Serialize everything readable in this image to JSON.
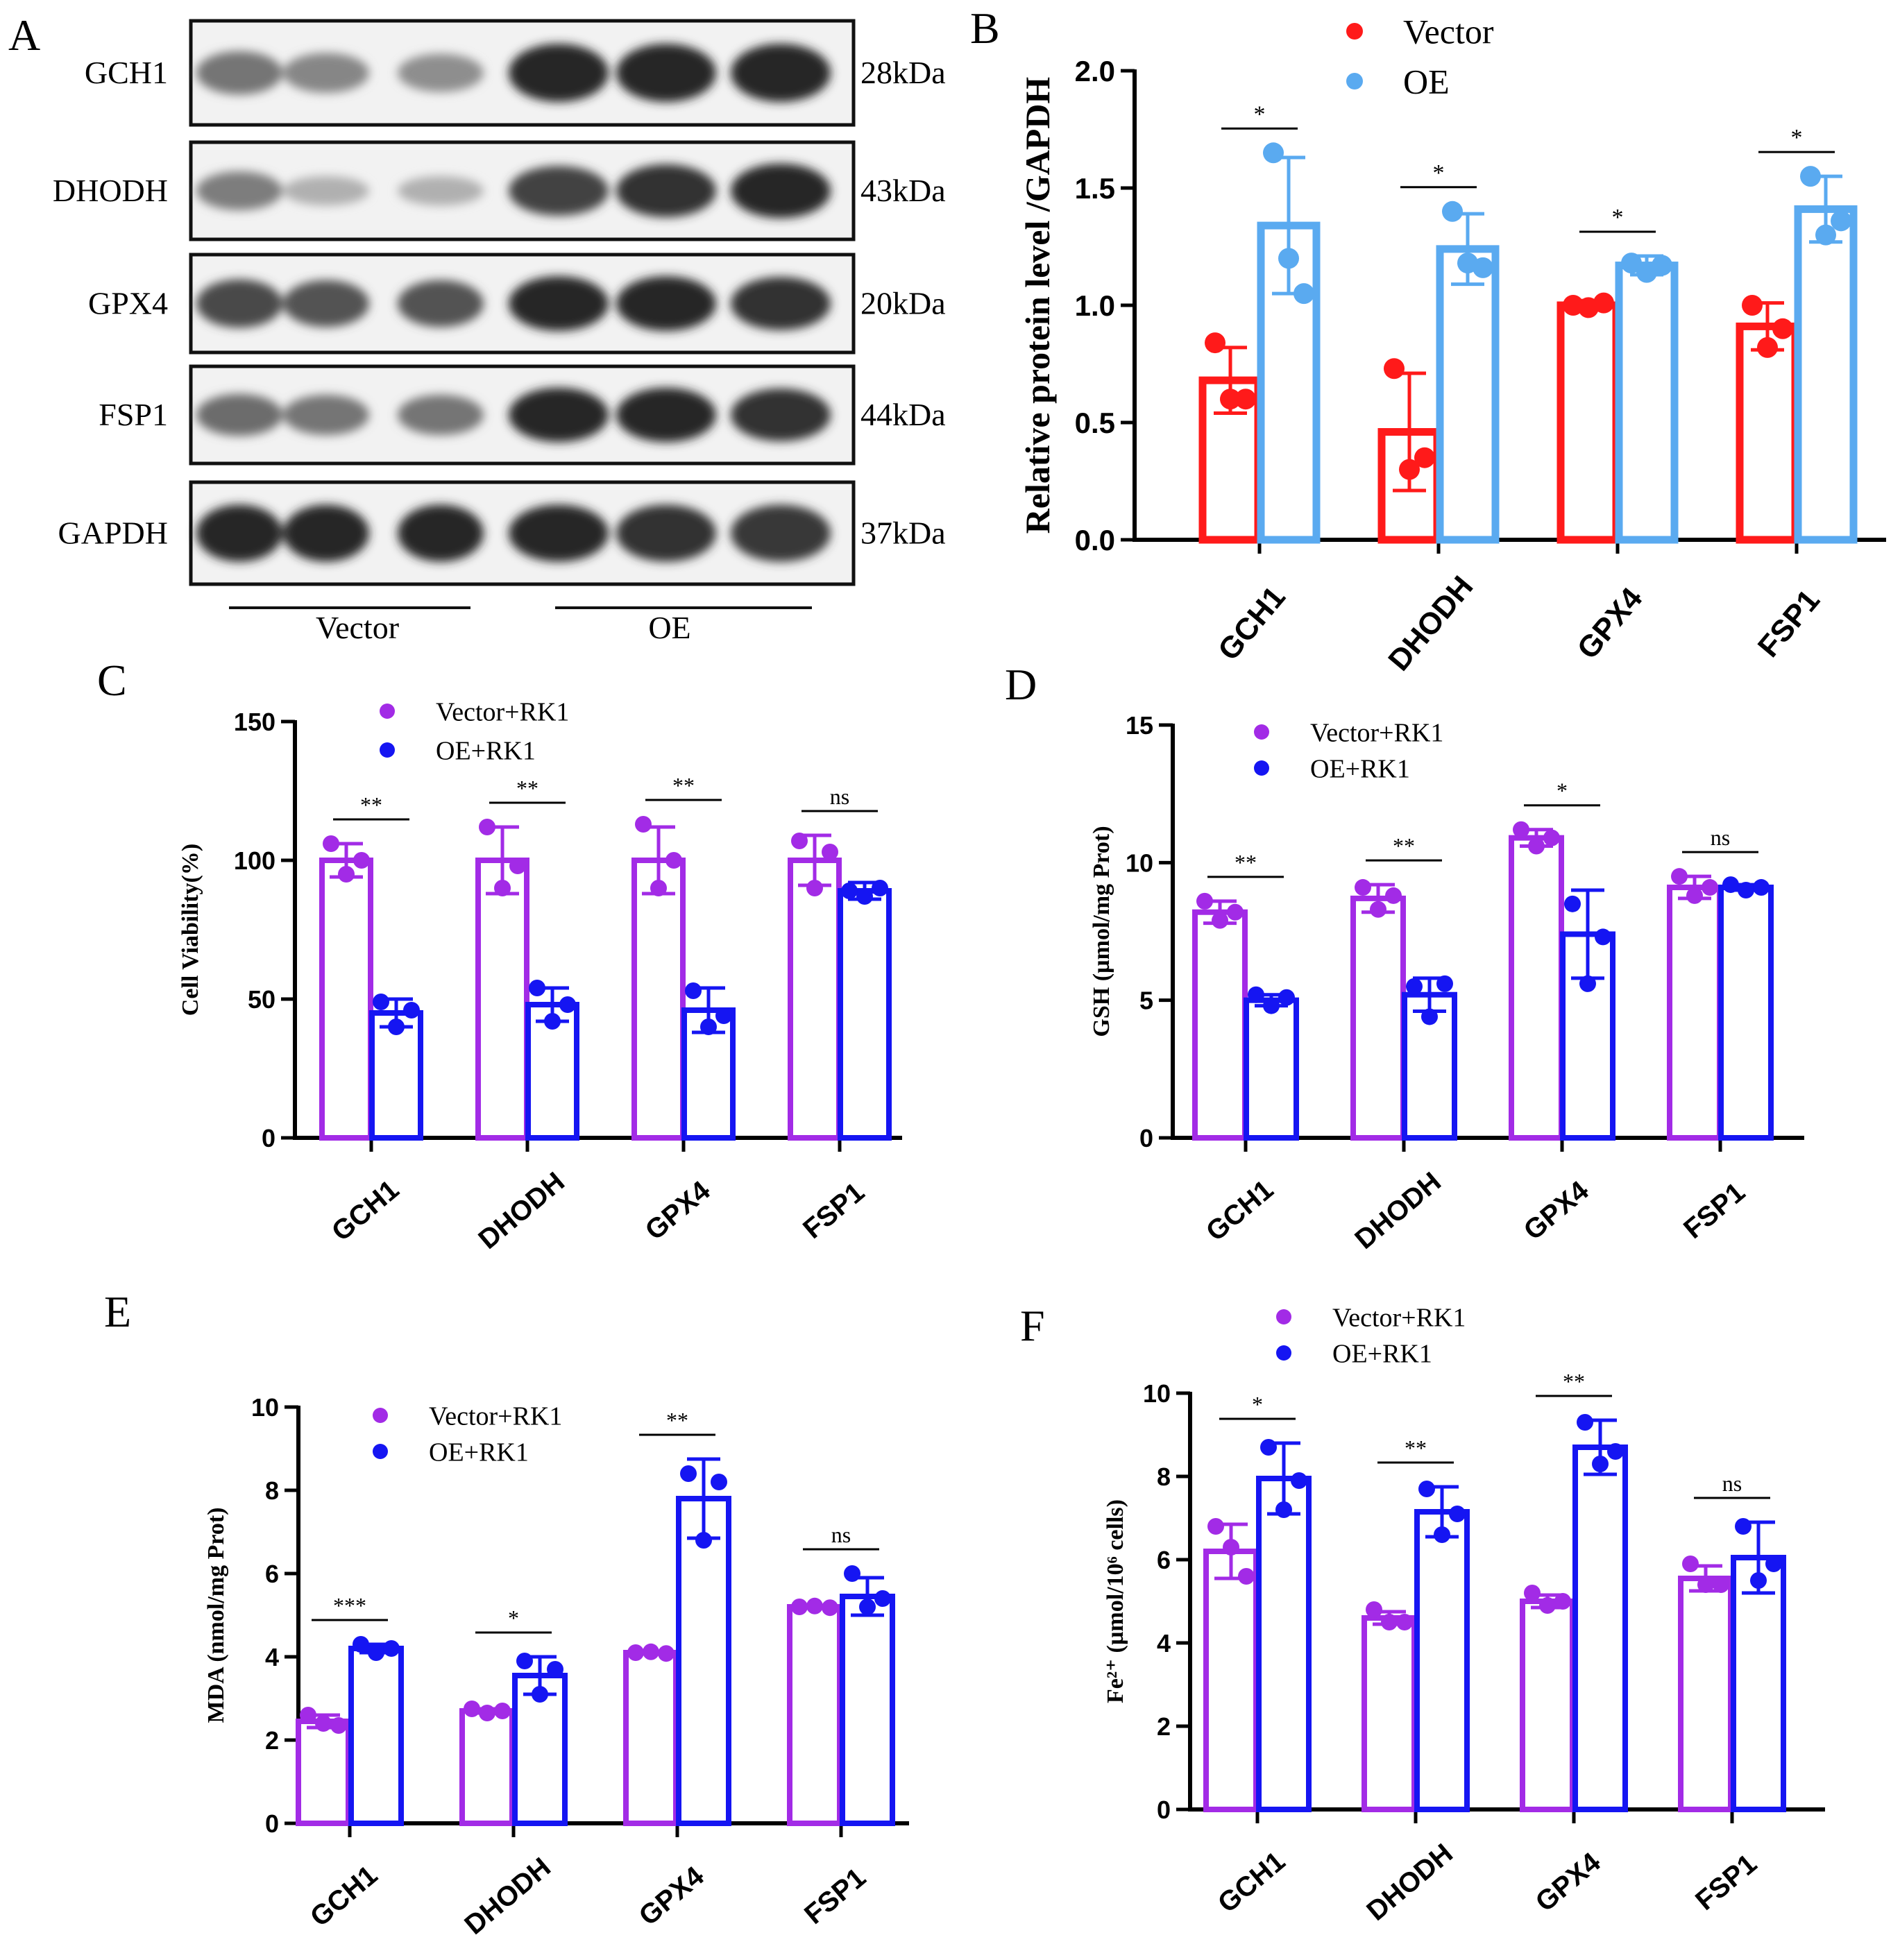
{
  "panel_letters": {
    "a": "A",
    "b": "B",
    "c": "C",
    "d": "D",
    "e": "E",
    "f": "F"
  },
  "blot": {
    "proteins": [
      {
        "name": "GCH1",
        "weight": "28kDa",
        "intensity": [
          0.55,
          0.45,
          0.4,
          1.0,
          1.0,
          1.0
        ]
      },
      {
        "name": "DHODH",
        "weight": "43kDa",
        "intensity": [
          0.5,
          0.2,
          0.2,
          0.85,
          0.95,
          1.0
        ]
      },
      {
        "name": "GPX4",
        "weight": "20kDa",
        "intensity": [
          0.8,
          0.75,
          0.75,
          1.0,
          1.0,
          0.95
        ]
      },
      {
        "name": "FSP1",
        "weight": "44kDa",
        "intensity": [
          0.6,
          0.55,
          0.55,
          1.0,
          1.0,
          0.95
        ]
      },
      {
        "name": "GAPDH",
        "weight": "37kDa",
        "intensity": [
          1.0,
          1.0,
          1.0,
          1.0,
          0.95,
          0.9
        ]
      }
    ],
    "group_labels": [
      "Vector",
      "OE"
    ]
  },
  "chart_data": [
    {
      "id": "B",
      "type": "bar",
      "title": "",
      "xlabel": "",
      "ylabel": "Relative protein level /GAPDH",
      "categories": [
        "GCH1",
        "DHODH",
        "GPX4",
        "FSP1"
      ],
      "ylim": [
        0,
        2.0
      ],
      "yticks": [
        0,
        0.5,
        1.0,
        1.5,
        2.0
      ],
      "ytick_labels": [
        "0.0",
        "0.5",
        "1.0",
        "1.5",
        "2.0"
      ],
      "legend_position": "top-center",
      "series": [
        {
          "name": "Vector",
          "color": "#ff1a1a",
          "values": [
            0.68,
            0.46,
            1.0,
            0.91
          ],
          "err": [
            0.14,
            0.25,
            0.02,
            0.1
          ],
          "points": [
            [
              0.84,
              0.6,
              0.6
            ],
            [
              0.73,
              0.3,
              0.35
            ],
            [
              1.0,
              0.99,
              1.01
            ],
            [
              1.0,
              0.82,
              0.9
            ]
          ]
        },
        {
          "name": "OE",
          "color": "#5aaaf0",
          "values": [
            1.34,
            1.24,
            1.17,
            1.41
          ],
          "err": [
            0.29,
            0.15,
            0.04,
            0.14
          ],
          "points": [
            [
              1.65,
              1.2,
              1.05
            ],
            [
              1.4,
              1.18,
              1.16
            ],
            [
              1.18,
              1.14,
              1.17
            ],
            [
              1.55,
              1.3,
              1.36
            ]
          ]
        }
      ],
      "significance": [
        "*",
        "*",
        "*",
        "*"
      ]
    },
    {
      "id": "C",
      "type": "bar",
      "title": "",
      "xlabel": "",
      "ylabel": "Cell Viability(%)",
      "categories": [
        "GCH1",
        "DHODH",
        "GPX4",
        "FSP1"
      ],
      "ylim": [
        0,
        150
      ],
      "yticks": [
        0,
        50,
        100,
        150
      ],
      "ytick_labels": [
        "0",
        "50",
        "100",
        "150"
      ],
      "legend_position": "top-left",
      "series": [
        {
          "name": "Vector+RK1",
          "color": "#a22be6",
          "values": [
            100,
            100,
            100,
            100
          ],
          "err": [
            6,
            12,
            12,
            9
          ],
          "points": [
            [
              106,
              95,
              100
            ],
            [
              112,
              90,
              98
            ],
            [
              113,
              90,
              100
            ],
            [
              107,
              90,
              103
            ]
          ]
        },
        {
          "name": "OE+RK1",
          "color": "#1515f2",
          "values": [
            45,
            48,
            46,
            89
          ],
          "err": [
            5,
            6,
            8,
            3
          ],
          "points": [
            [
              49,
              40,
              46
            ],
            [
              54,
              42,
              48
            ],
            [
              53,
              40,
              44
            ],
            [
              89,
              87,
              90
            ]
          ]
        }
      ],
      "significance": [
        "**",
        "**",
        "**",
        "ns"
      ]
    },
    {
      "id": "D",
      "type": "bar",
      "title": "",
      "xlabel": "",
      "ylabel": "GSH (µmol/mg Prot)",
      "categories": [
        "GCH1",
        "DHODH",
        "GPX4",
        "FSP1"
      ],
      "ylim": [
        0,
        15
      ],
      "yticks": [
        0,
        5,
        10,
        15
      ],
      "ytick_labels": [
        "0",
        "5",
        "10",
        "15"
      ],
      "legend_position": "top-left",
      "series": [
        {
          "name": "Vector+RK1",
          "color": "#a22be6",
          "values": [
            8.2,
            8.7,
            10.9,
            9.1
          ],
          "err": [
            0.4,
            0.5,
            0.3,
            0.4
          ],
          "points": [
            [
              8.6,
              7.9,
              8.2
            ],
            [
              9.1,
              8.3,
              8.8
            ],
            [
              11.2,
              10.6,
              10.9
            ],
            [
              9.5,
              8.8,
              9.1
            ]
          ]
        },
        {
          "name": "OE+RK1",
          "color": "#1515f2",
          "values": [
            5.0,
            5.2,
            7.4,
            9.1
          ],
          "err": [
            0.2,
            0.6,
            1.6,
            0.1
          ],
          "points": [
            [
              5.2,
              4.8,
              5.1
            ],
            [
              5.5,
              4.4,
              5.6
            ],
            [
              8.5,
              5.6,
              7.3
            ],
            [
              9.2,
              9.0,
              9.1
            ]
          ]
        }
      ],
      "significance": [
        "**",
        "**",
        "*",
        "ns"
      ]
    },
    {
      "id": "E",
      "type": "bar",
      "title": "",
      "xlabel": "",
      "ylabel": "MDA (nmol/mg Prot)",
      "categories": [
        "GCH1",
        "DHODH",
        "GPX4",
        "FSP1"
      ],
      "ylim": [
        0,
        10
      ],
      "yticks": [
        0,
        2,
        4,
        6,
        8,
        10
      ],
      "ytick_labels": [
        "0",
        "2",
        "4",
        "6",
        "8",
        "10"
      ],
      "legend_position": "top-left",
      "series": [
        {
          "name": "Vector+RK1",
          "color": "#a22be6",
          "values": [
            2.45,
            2.7,
            4.1,
            5.2
          ],
          "err": [
            0.15,
            0.05,
            0.02,
            0.03
          ],
          "points": [
            [
              2.6,
              2.4,
              2.35
            ],
            [
              2.75,
              2.65,
              2.7
            ],
            [
              4.1,
              4.12,
              4.08
            ],
            [
              5.2,
              5.22,
              5.18
            ]
          ]
        },
        {
          "name": "OE+RK1",
          "color": "#1515f2",
          "values": [
            4.2,
            3.55,
            7.8,
            5.45
          ],
          "err": [
            0.1,
            0.45,
            0.95,
            0.45
          ],
          "points": [
            [
              4.3,
              4.1,
              4.2
            ],
            [
              3.9,
              3.1,
              3.7
            ],
            [
              8.4,
              6.8,
              8.2
            ],
            [
              6.0,
              5.2,
              5.4
            ]
          ]
        }
      ],
      "significance": [
        "***",
        "*",
        "**",
        "ns"
      ]
    },
    {
      "id": "F",
      "type": "bar",
      "title": "",
      "xlabel": "",
      "ylabel": "Fe²⁺ (µmol/10⁶ cells)",
      "categories": [
        "GCH1",
        "DHODH",
        "GPX4",
        "FSP1"
      ],
      "ylim": [
        0,
        10
      ],
      "yticks": [
        0,
        2,
        4,
        6,
        8,
        10
      ],
      "ytick_labels": [
        "0",
        "2",
        "4",
        "6",
        "8",
        "10"
      ],
      "legend_position": "top-left",
      "series": [
        {
          "name": "Vector+RK1",
          "color": "#a22be6",
          "values": [
            6.2,
            4.6,
            5.0,
            5.55
          ],
          "err": [
            0.65,
            0.15,
            0.15,
            0.3
          ],
          "points": [
            [
              6.8,
              6.3,
              5.6
            ],
            [
              4.8,
              4.5,
              4.5
            ],
            [
              5.2,
              4.9,
              5.0
            ],
            [
              5.9,
              5.4,
              5.4
            ]
          ]
        },
        {
          "name": "OE+RK1",
          "color": "#1515f2",
          "values": [
            7.95,
            7.15,
            8.7,
            6.05
          ],
          "err": [
            0.85,
            0.6,
            0.65,
            0.85
          ],
          "points": [
            [
              8.7,
              7.2,
              7.9
            ],
            [
              7.7,
              6.6,
              7.1
            ],
            [
              9.3,
              8.3,
              8.6
            ],
            [
              6.8,
              5.5,
              5.9
            ]
          ]
        }
      ],
      "significance": [
        "*",
        "**",
        "**",
        "ns"
      ]
    }
  ]
}
